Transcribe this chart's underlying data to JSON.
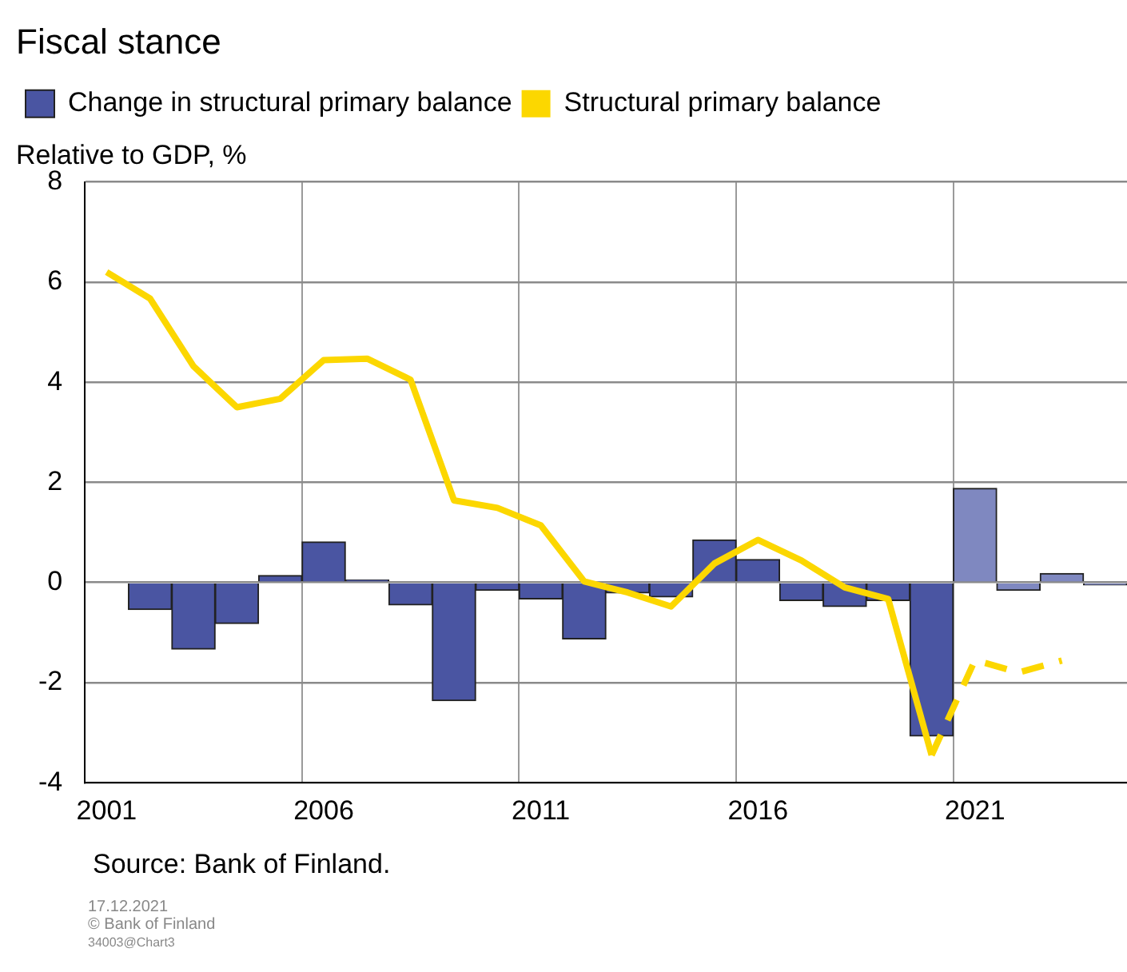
{
  "chart_data": {
    "type": "bar",
    "title": "Fiscal stance",
    "ylabel": "Relative to GDP, %",
    "categories": [
      "2001",
      null,
      null,
      null,
      null,
      "2006",
      null,
      null,
      null,
      null,
      "2011",
      null,
      null,
      null,
      null,
      "2016",
      null,
      null,
      null,
      null,
      "2021",
      null,
      null,
      null
    ],
    "series": [
      {
        "name": "Change in structural primary balance",
        "colors": [
          "#4a55a2",
          "#4a55a2",
          "#4a55a2",
          "#4a55a2",
          "#4a55a2",
          "#4a55a2",
          "#4a55a2",
          "#4a55a2",
          "#4a55a2",
          "#4a55a2",
          "#4a55a2",
          "#4a55a2",
          "#4a55a2",
          "#4a55a2",
          "#4a55a2",
          "#4a55a2",
          "#4a55a2",
          "#4a55a2",
          "#4a55a2",
          "#4a55a2",
          "#7f88c0",
          "#7f88c0",
          "#7f88c0",
          "#7f88c0"
        ],
        "values": [
          null,
          -0.54,
          -1.33,
          -0.82,
          0.14,
          0.81,
          0.05,
          -0.45,
          -2.36,
          -0.16,
          -0.33,
          -1.13,
          -0.21,
          -0.29,
          0.85,
          0.46,
          -0.36,
          -0.48,
          -0.36,
          -3.07,
          1.88,
          -0.16,
          0.18,
          -0.05
        ]
      },
      {
        "type": "line",
        "name": "Structural primary balance",
        "color": "#fcd700",
        "line_style": "solid",
        "values": [
          6.2,
          5.67,
          4.32,
          3.5,
          3.67,
          4.44,
          4.47,
          4.05,
          1.64,
          1.49,
          1.14,
          0.02,
          -0.2,
          -0.48,
          0.38,
          0.85,
          0.44,
          -0.1,
          -0.33,
          -3.45,
          null,
          null,
          null,
          null
        ]
      },
      {
        "type": "line",
        "color": "#fcd700",
        "line_style": "dashed",
        "values": [
          null,
          null,
          null,
          null,
          null,
          null,
          null,
          null,
          null,
          null,
          null,
          null,
          null,
          null,
          null,
          null,
          null,
          null,
          null,
          -3.45,
          -1.55,
          -1.8,
          -1.56,
          null
        ]
      }
    ],
    "ylim": [
      -4,
      8
    ],
    "yticks": [
      -4,
      -2,
      0,
      2,
      4,
      6,
      8
    ],
    "grid": true,
    "legend": "top",
    "marker": "none",
    "annotations": [
      "Source: Bank of Finland.",
      "17.12.2021",
      "© Bank of Finland",
      "34003@Chart3"
    ]
  }
}
